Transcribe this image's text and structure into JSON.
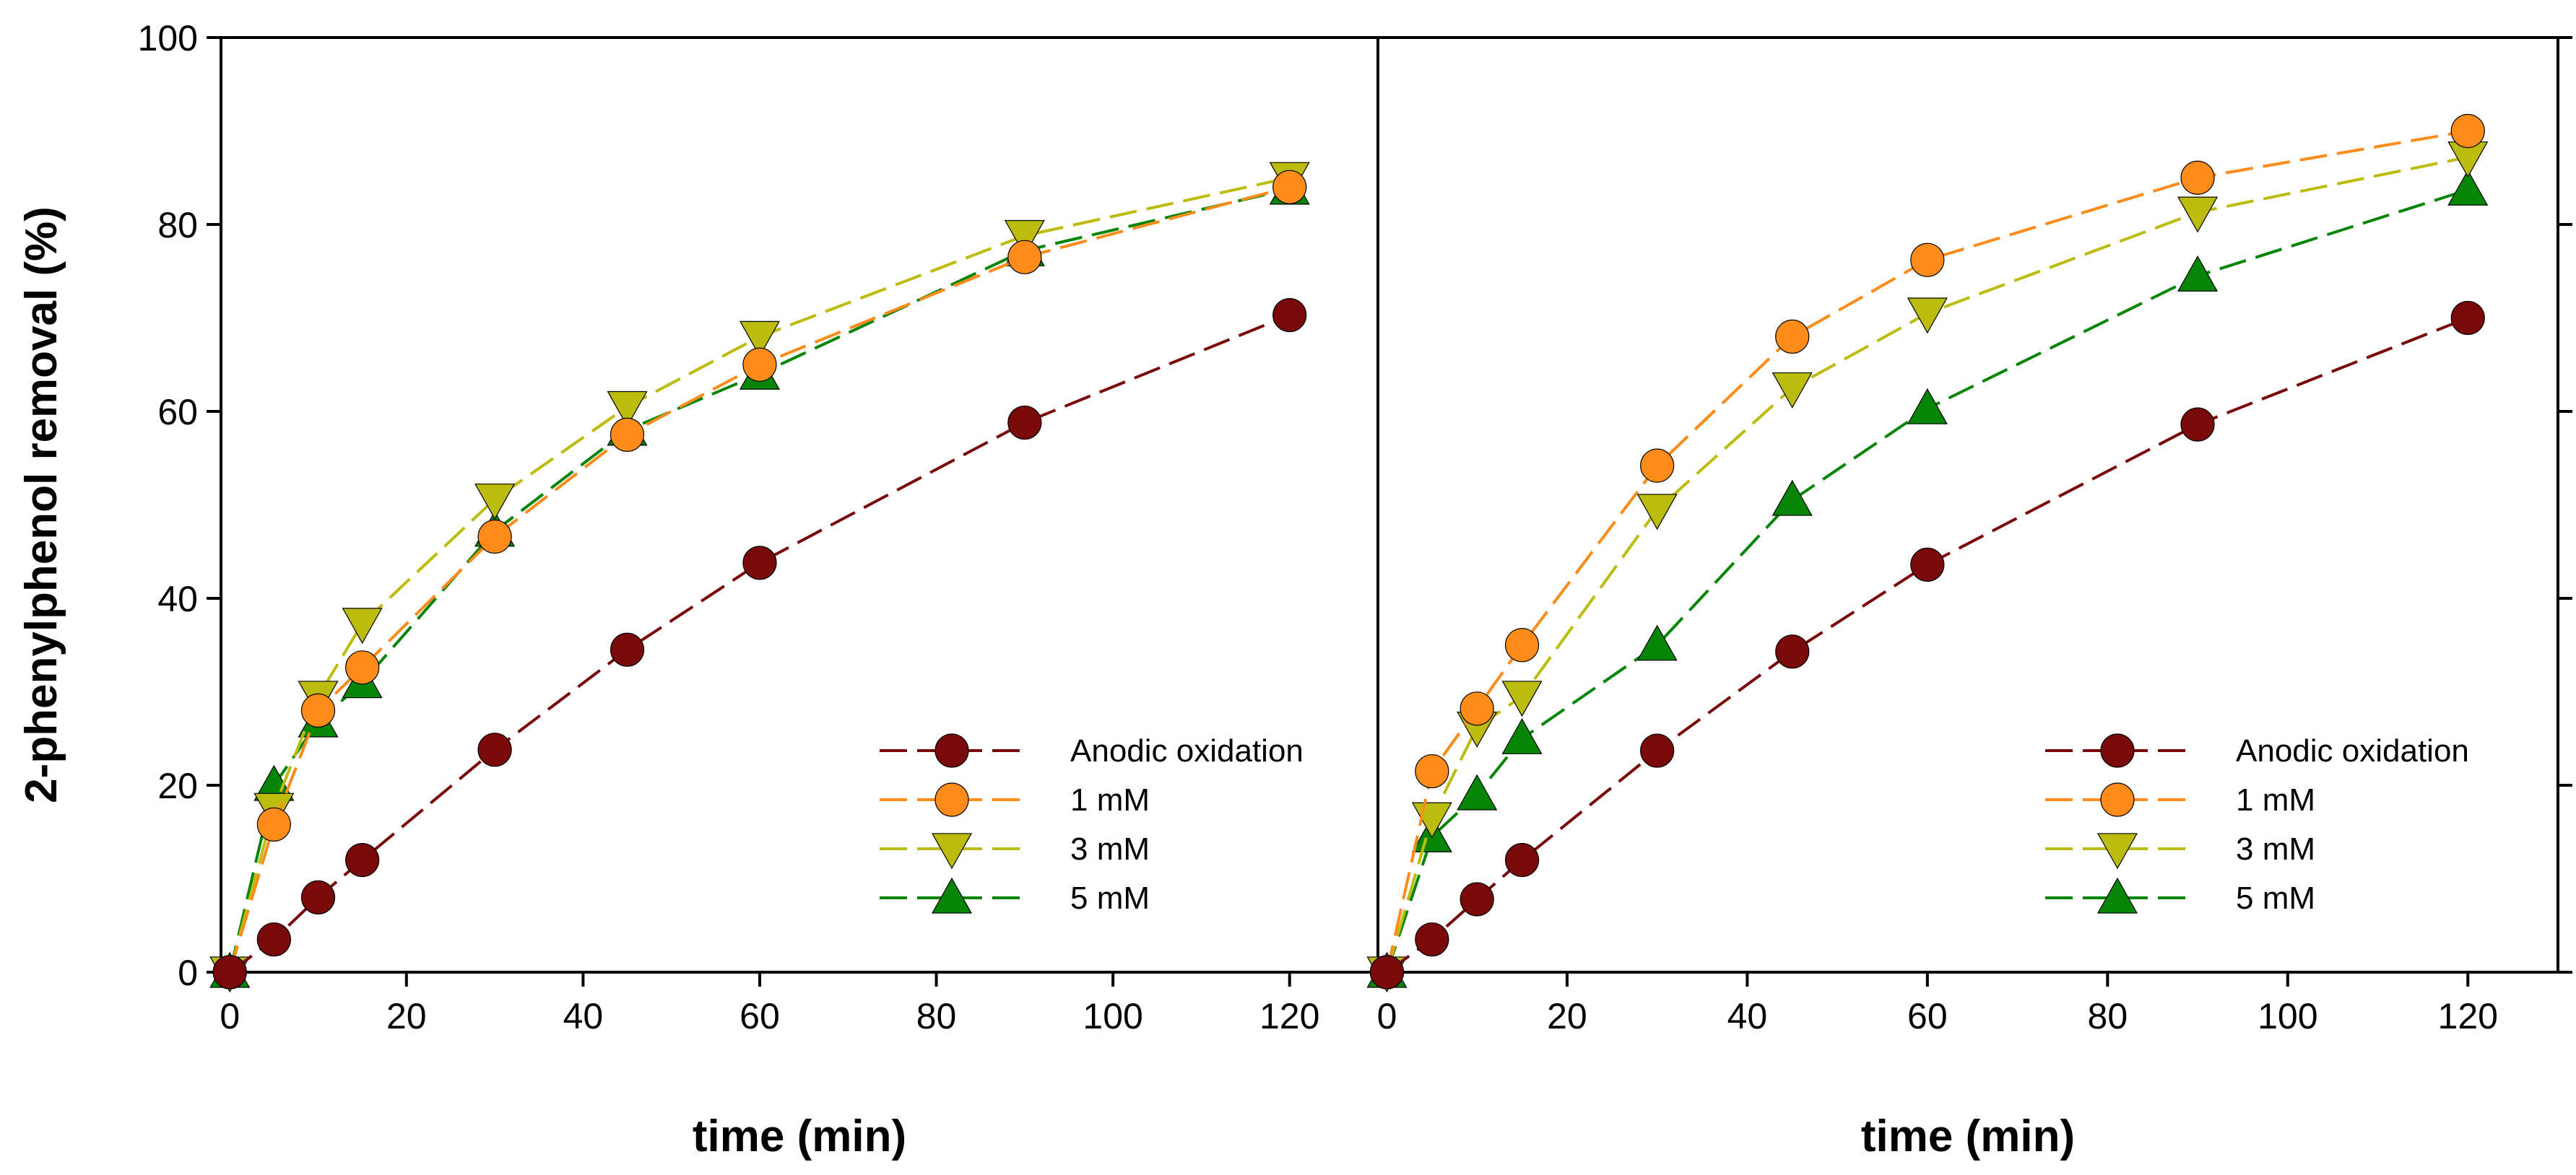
{
  "chart_data": [
    {
      "type": "line",
      "panel": "left",
      "title": "",
      "xlabel": "time (min)",
      "ylabel": "2-phenylphenol removal (%)",
      "xlim": [
        -1,
        130
      ],
      "ylim": [
        0,
        100
      ],
      "xticks": [
        0,
        20,
        40,
        60,
        80,
        100,
        120
      ],
      "yticks": [
        0,
        20,
        40,
        60,
        80,
        100
      ],
      "xtick_labels": [
        "0",
        "20",
        "40",
        "60",
        "80",
        "100",
        "120"
      ],
      "ytick_labels": [
        "0",
        "20",
        "40",
        "60",
        "80",
        "100"
      ],
      "legend_position": "bottom-right",
      "x": [
        0,
        5,
        10,
        15,
        30,
        45,
        60,
        90,
        120
      ],
      "series": [
        {
          "name": "Anodic oxidation",
          "marker": "circle",
          "color": "#7a0a0a",
          "values": [
            0,
            3.5,
            8,
            12,
            23.8,
            34.5,
            43.8,
            58.8,
            70.3
          ]
        },
        {
          "name": "1 mM",
          "marker": "circle",
          "color": "#ff8c1a",
          "values": [
            0,
            15.8,
            28,
            32.6,
            46.6,
            57.5,
            65,
            76.5,
            84
          ]
        },
        {
          "name": "3 mM",
          "marker": "triangle-down",
          "color": "#bcbc0f",
          "values": [
            0,
            17.5,
            29.5,
            37.3,
            50.6,
            60.5,
            68,
            78.8,
            85
          ]
        },
        {
          "name": "5 mM",
          "marker": "triangle-up",
          "color": "#078507",
          "values": [
            0,
            20,
            26.8,
            31,
            47.2,
            58,
            64,
            77.2,
            83.8
          ]
        }
      ]
    },
    {
      "type": "line",
      "panel": "right",
      "title": "",
      "xlabel": "time (min)",
      "ylabel": "",
      "xlim": [
        -1,
        130
      ],
      "ylim": [
        0,
        100
      ],
      "xticks": [
        0,
        20,
        40,
        60,
        80,
        100,
        120
      ],
      "yticks": [
        0,
        20,
        40,
        60,
        80,
        100
      ],
      "xtick_labels": [
        "0",
        "20",
        "40",
        "60",
        "80",
        "100",
        "120"
      ],
      "ytick_labels": [],
      "legend_position": "bottom-right",
      "x": [
        0,
        5,
        10,
        15,
        30,
        45,
        60,
        90,
        120
      ],
      "series": [
        {
          "name": "Anodic oxidation",
          "marker": "circle",
          "color": "#7a0a0a",
          "values": [
            0,
            3.5,
            7.8,
            12,
            23.7,
            34.3,
            43.6,
            58.6,
            70
          ]
        },
        {
          "name": "1 mM",
          "marker": "circle",
          "color": "#ff8c1a",
          "values": [
            0,
            21.5,
            28.2,
            35,
            54.2,
            68,
            76.2,
            85,
            90
          ]
        },
        {
          "name": "3 mM",
          "marker": "triangle-down",
          "color": "#bcbc0f",
          "values": [
            0,
            16.5,
            26.2,
            29.5,
            49.5,
            62.5,
            70.5,
            81.3,
            87.2
          ]
        },
        {
          "name": "5 mM",
          "marker": "triangle-up",
          "color": "#078507",
          "values": [
            0,
            14.5,
            19,
            25,
            35,
            50.5,
            60.3,
            74.5,
            83.7
          ]
        }
      ]
    }
  ]
}
